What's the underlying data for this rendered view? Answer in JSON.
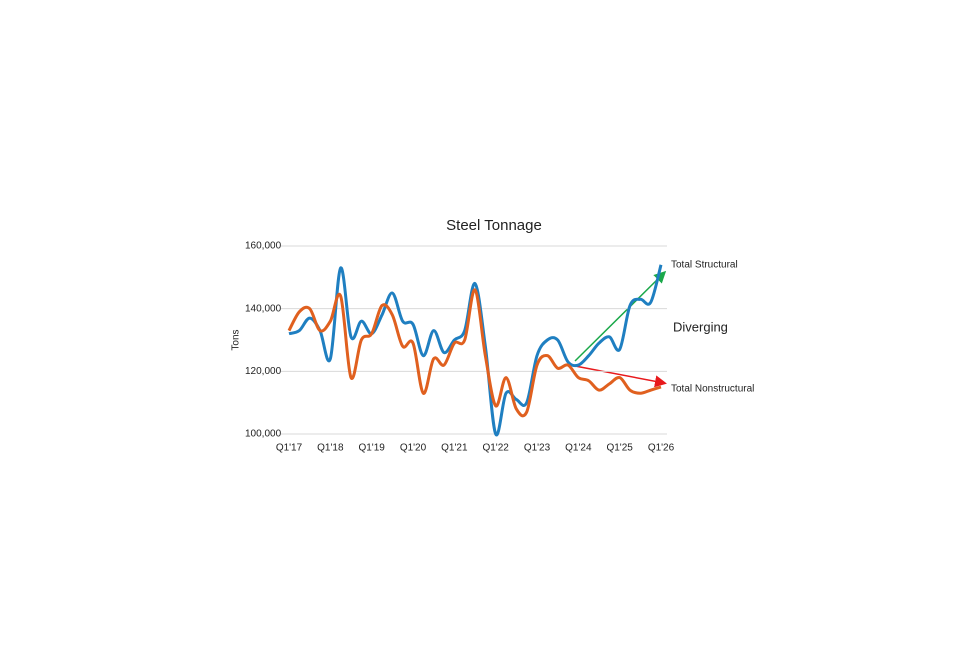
{
  "chart_data": {
    "type": "line",
    "title": "Steel Tonnage",
    "y_label": "Tons",
    "annotation": "Diverging",
    "categories": [
      "Q1'17",
      null,
      null,
      null,
      "Q1'18",
      null,
      null,
      null,
      "Q1'19",
      null,
      null,
      null,
      "Q1'20",
      null,
      null,
      null,
      "Q1'21",
      null,
      null,
      null,
      "Q1'22",
      null,
      null,
      null,
      "Q1'23",
      null,
      null,
      null,
      "Q1'24",
      null,
      null,
      null,
      "Q1'25",
      null,
      null,
      null,
      "Q1'26"
    ],
    "series": [
      {
        "name": "Total Structural",
        "color": "#1f7fc1",
        "values": [
          132000,
          133000,
          137000,
          133000,
          124000,
          153000,
          131000,
          136000,
          132000,
          138000,
          145000,
          136000,
          135000,
          125000,
          133000,
          126000,
          130000,
          133000,
          148000,
          128000,
          100000,
          113000,
          111000,
          110000,
          125000,
          130000,
          130000,
          123000,
          122000,
          125000,
          129000,
          131000,
          127000,
          141000,
          143000,
          142000,
          154000
        ]
      },
      {
        "name": "Total Nonstructural",
        "color": "#e0601f",
        "values": [
          133000,
          139000,
          140000,
          133000,
          136000,
          144000,
          118000,
          130000,
          132000,
          141000,
          138000,
          128000,
          129000,
          113000,
          124000,
          122000,
          129000,
          130000,
          146000,
          125000,
          109000,
          118000,
          108000,
          107000,
          122000,
          125000,
          121000,
          122000,
          118000,
          117000,
          114000,
          116000,
          118000,
          114000,
          113000,
          114000,
          115000
        ]
      }
    ],
    "ylim": [
      100000,
      160000
    ],
    "yticks": [
      {
        "value": 100000,
        "label": "100,000"
      },
      {
        "value": 120000,
        "label": "120,000"
      },
      {
        "value": 140000,
        "label": "140,000"
      },
      {
        "value": 160000,
        "label": "160,000"
      }
    ],
    "grid": true
  }
}
